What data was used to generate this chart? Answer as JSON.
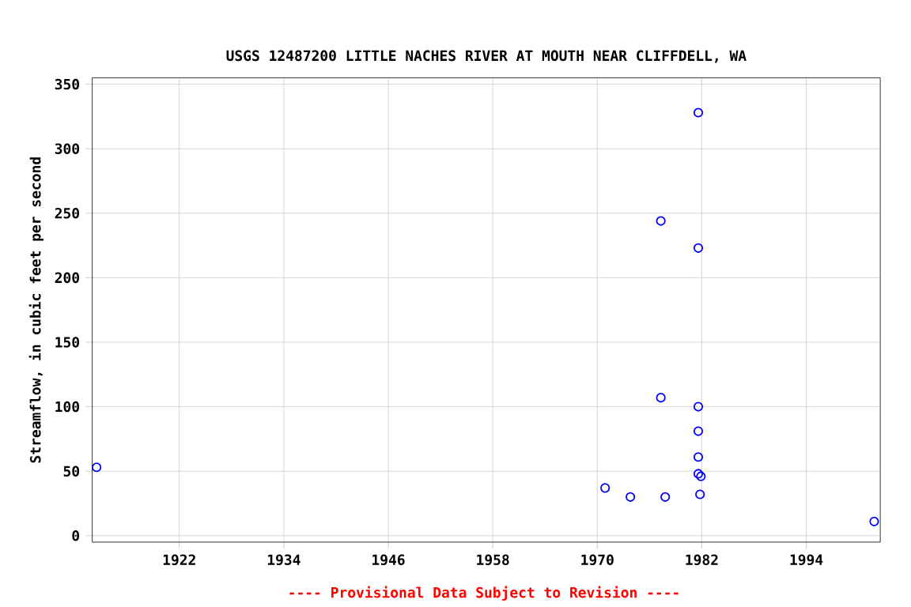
{
  "chart_data": {
    "type": "scatter",
    "title": "USGS 12487200 LITTLE NACHES RIVER AT MOUTH NEAR CLIFFDELL, WA",
    "ylabel": "Streamflow, in cubic feet per second",
    "annotations": [
      "---- Provisional Data Subject to Revision ----"
    ],
    "x": [
      1912.5,
      1970.9,
      1973.8,
      1977.8,
      1977.3,
      1977.3,
      1981.6,
      1981.6,
      1981.6,
      1981.6,
      1981.6,
      1981.6,
      1981.9,
      1981.8,
      2001.8
    ],
    "values": [
      53,
      37,
      30,
      30,
      244,
      107,
      328,
      223,
      100,
      81,
      61,
      48,
      46,
      32,
      11
    ],
    "color": "#0000ff",
    "marker": "circle",
    "grid": true,
    "xlim": [
      1912,
      2002.5
    ],
    "xticks": [
      1922,
      1934,
      1946,
      1958,
      1970,
      1982,
      1994
    ],
    "ylim": [
      -5,
      355
    ],
    "yticks": [
      0,
      50,
      100,
      150,
      200,
      250,
      300,
      350
    ]
  }
}
